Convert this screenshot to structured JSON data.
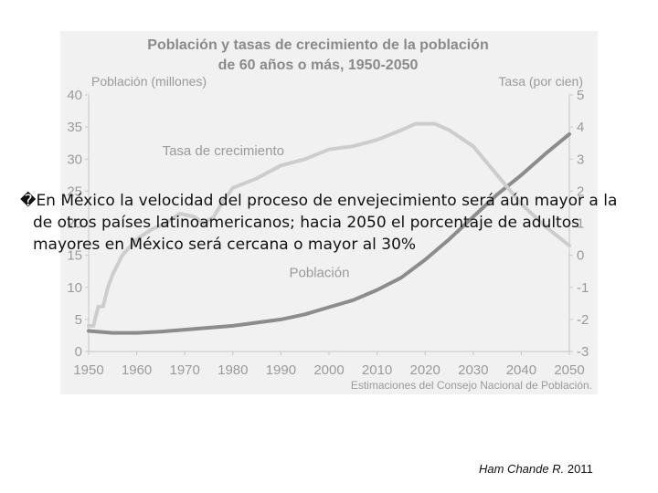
{
  "chart_data": {
    "type": "line",
    "title_line1": "Población y tasas de crecimiento de la población",
    "title_line2": "de 60 años o más, 1950-2050",
    "ylabel_left": "Población  (millones)",
    "ylabel_right": "Tasa (por cien)",
    "source_note": "Estimaciones del Consejo Nacional de Población.",
    "x_ticks": [
      1950,
      1960,
      1970,
      1980,
      1990,
      2000,
      2010,
      2020,
      2030,
      2040,
      2050
    ],
    "y_left_ticks": [
      0,
      5,
      10,
      15,
      20,
      25,
      30,
      35,
      40
    ],
    "y_right_ticks": [
      -3,
      -2,
      -1,
      0,
      1,
      2,
      3,
      4,
      5
    ],
    "xlim": [
      1950,
      2050
    ],
    "ylim_left": [
      0,
      40
    ],
    "ylim_right": [
      -3,
      5
    ],
    "grid": false,
    "series": [
      {
        "name": "Población",
        "axis": "left",
        "x": [
          1950,
          1955,
          1960,
          1965,
          1970,
          1975,
          1980,
          1985,
          1990,
          1995,
          2000,
          2005,
          2010,
          2015,
          2020,
          2025,
          2030,
          2035,
          2040,
          2045,
          2050
        ],
        "values": [
          3.2,
          2.9,
          2.9,
          3.1,
          3.4,
          3.7,
          4.0,
          4.5,
          5.0,
          5.8,
          6.9,
          8.0,
          9.6,
          11.5,
          14.3,
          17.5,
          21.0,
          24.5,
          27.5,
          30.8,
          33.9
        ]
      },
      {
        "name": "Tasa de crecimiento",
        "axis": "right",
        "x": [
          1950,
          1951,
          1952,
          1953,
          1954,
          1955,
          1957,
          1960,
          1963,
          1966,
          1969,
          1972,
          1974,
          1976,
          1978,
          1980,
          1985,
          1990,
          1995,
          2000,
          2005,
          2010,
          2015,
          2018,
          2020,
          2022,
          2025,
          2030,
          2035,
          2040,
          2045,
          2050
        ],
        "values": [
          -2.2,
          -2.2,
          -1.6,
          -1.6,
          -1.0,
          -0.6,
          0.0,
          0.5,
          0.8,
          1.0,
          1.3,
          1.2,
          1.0,
          1.2,
          1.7,
          2.1,
          2.4,
          2.8,
          3.0,
          3.3,
          3.4,
          3.6,
          3.9,
          4.1,
          4.1,
          4.1,
          3.9,
          3.4,
          2.5,
          1.6,
          0.9,
          0.3
        ]
      }
    ],
    "annotations": [
      {
        "text": "Tasa de crecimiento",
        "x": 1978,
        "y_left": 30.6
      },
      {
        "text": "Población",
        "x": 1998,
        "y_left": 11.6
      }
    ]
  },
  "overlay": {
    "bullet": "�",
    "text": "En México la velocidad del proceso de envejecimiento será aún mayor a la de otros países latinoamericanos; hacia 2050 el porcentaje de adultos mayores en México será cercana o mayor al 30%"
  },
  "credit": {
    "author": "Ham Chande R.",
    "year": "2011"
  },
  "colors": {
    "panel": "#f1f1f1",
    "title": "#8a8a8a",
    "axis_text": "#9a9a9a",
    "population_line": "#8c8c8c",
    "rate_line": "#cdcdcd"
  }
}
